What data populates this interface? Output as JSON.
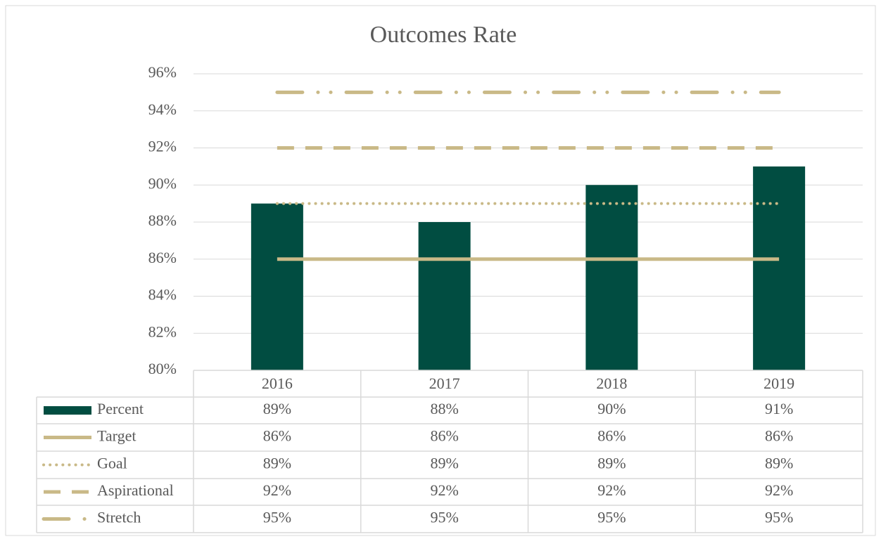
{
  "chart_data": {
    "type": "bar",
    "title": "Outcomes Rate",
    "categories": [
      "2016",
      "2017",
      "2018",
      "2019"
    ],
    "ylim": [
      80,
      96
    ],
    "yticks": [
      {
        "value": 80,
        "label": "80%"
      },
      {
        "value": 82,
        "label": "82%"
      },
      {
        "value": 84,
        "label": "84%"
      },
      {
        "value": 86,
        "label": "86%"
      },
      {
        "value": 88,
        "label": "88%"
      },
      {
        "value": 90,
        "label": "90%"
      },
      {
        "value": 92,
        "label": "92%"
      },
      {
        "value": 94,
        "label": "94%"
      },
      {
        "value": 96,
        "label": "96%"
      }
    ],
    "grid": true,
    "series": [
      {
        "name": "Percent",
        "type": "bar",
        "color": "#014d41",
        "values": [
          89,
          88,
          90,
          91
        ],
        "value_labels": [
          "89%",
          "88%",
          "90%",
          "91%"
        ]
      },
      {
        "name": "Target",
        "type": "line",
        "dash": "solid",
        "color": "#c9b987",
        "values": [
          86,
          86,
          86,
          86
        ],
        "value_labels": [
          "86%",
          "86%",
          "86%",
          "86%"
        ]
      },
      {
        "name": "Goal",
        "type": "line",
        "dash": "dotted",
        "color": "#c9b987",
        "values": [
          89,
          89,
          89,
          89
        ],
        "value_labels": [
          "89%",
          "89%",
          "89%",
          "89%"
        ]
      },
      {
        "name": "Aspirational",
        "type": "line",
        "dash": "dashed",
        "color": "#c9b987",
        "values": [
          92,
          92,
          92,
          92
        ],
        "value_labels": [
          "92%",
          "92%",
          "92%",
          "92%"
        ]
      },
      {
        "name": "Stretch",
        "type": "line",
        "dash": "long-dash-dot-dot",
        "color": "#c9b987",
        "values": [
          95,
          95,
          95,
          95
        ],
        "value_labels": [
          "95%",
          "95%",
          "95%",
          "95%"
        ]
      }
    ]
  }
}
